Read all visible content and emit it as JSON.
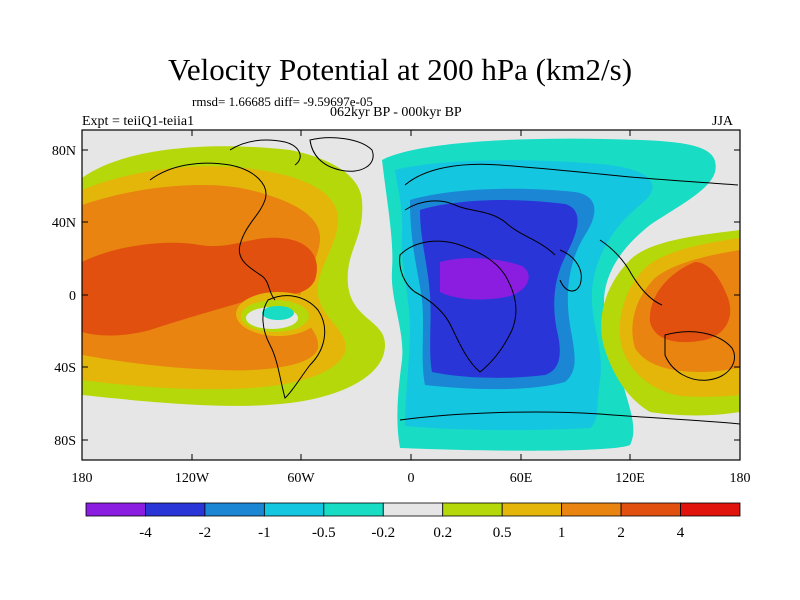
{
  "title": "Velocity Potential at 200 hPa (km2/s)",
  "stats": "rmsd= 1.66685 diff= -9.59697e-05",
  "period": "062kyr BP - 000kyr BP",
  "experiment": "Expt = teiiQ1-teiia1",
  "season": "JJA",
  "lat_ticks": [
    "80N",
    "40N",
    "0",
    "40S",
    "80S"
  ],
  "lon_ticks": [
    "180",
    "120W",
    "60W",
    "0",
    "60E",
    "120E",
    "180"
  ],
  "colorbar": {
    "labels": [
      "-4",
      "-2",
      "-1",
      "-0.5",
      "-0.2",
      "0.2",
      "0.5",
      "1",
      "2",
      "4"
    ],
    "colors": [
      "#8a1de0",
      "#2a35d8",
      "#1b86d4",
      "#15c6e0",
      "#18dcc4",
      "#e6e6e6",
      "#b4d80a",
      "#e4b60a",
      "#e8840f",
      "#e2500f",
      "#e0140c"
    ]
  },
  "fill": {
    "land_outline": "#000000",
    "frame": "#000000"
  }
}
